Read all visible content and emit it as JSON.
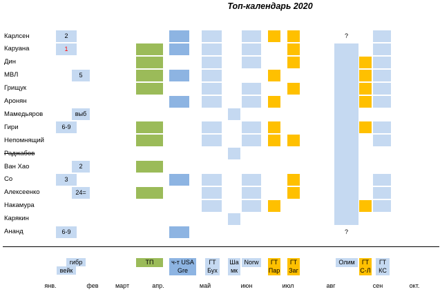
{
  "title": "Топ-календарь 2020",
  "colors": {
    "light_blue": "#c5d9f1",
    "green": "#9bbb59",
    "orange": "#ffc000",
    "mid_blue": "#8db4e2",
    "red_text": "#ff0000"
  },
  "chart_data": {
    "type": "table",
    "title": "Топ-календарь 2020",
    "players": [
      "Карлсен",
      "Каруана",
      "Дин",
      "МВЛ",
      "Грищук",
      "Аронян",
      "Мамедьяров",
      "Гири",
      "Непомнящий",
      "Раджабов",
      "Ван Хао",
      "Со",
      "Алексеенко",
      "Накамура",
      "Карякин",
      "Ананд"
    ],
    "struck_players": [
      "Раджабов"
    ],
    "months": [
      "янв.",
      "фев",
      "март",
      "апр.",
      "май",
      "июн",
      "июл",
      "авг",
      "сен",
      "окт."
    ],
    "events": [
      {
        "id": "gibraltar",
        "label_lines": [
          "гибр",
          "вейк"
        ],
        "color": "light_blue"
      },
      {
        "id": "candidates",
        "label_lines": [
          "ТП"
        ],
        "color": "green"
      },
      {
        "id": "us_champ",
        "label_lines": [
          "ч-т USA",
          "Gre"
        ],
        "color": "mid_blue"
      },
      {
        "id": "gt_buch",
        "label_lines": [
          "ГТ",
          "Бух"
        ],
        "color": "light_blue"
      },
      {
        "id": "shamkir",
        "label_lines": [
          "Ша",
          "мк"
        ],
        "color": "light_blue"
      },
      {
        "id": "norway",
        "label_lines": [
          "Norw"
        ],
        "color": "light_blue"
      },
      {
        "id": "gt_paris",
        "label_lines": [
          "ГТ",
          "Пар"
        ],
        "color": "orange"
      },
      {
        "id": "gt_zagreb",
        "label_lines": [
          "ГТ",
          "Заг"
        ],
        "color": "orange"
      },
      {
        "id": "olympiad",
        "label_lines": [
          "Олим"
        ],
        "color": "light_blue"
      },
      {
        "id": "gt_stl",
        "label_lines": [
          "ГТ",
          "С-Л"
        ],
        "color": "orange"
      },
      {
        "id": "gt_kc",
        "label_lines": [
          "ГТ",
          "КС"
        ],
        "color": "light_blue"
      }
    ],
    "participation": {
      "Карлсен": [
        "us_champ",
        "gt_buch",
        "norway",
        "gt_paris",
        "gt_zagreb",
        "gt_kc"
      ],
      "Каруана": [
        "candidates",
        "us_champ",
        "gt_buch",
        "norway",
        "gt_zagreb",
        "olympiad",
        "gt_kc"
      ],
      "Дин": [
        "candidates",
        "gt_buch",
        "norway",
        "gt_zagreb",
        "olympiad",
        "gt_stl",
        "gt_kc"
      ],
      "МВЛ": [
        "candidates",
        "us_champ",
        "gt_buch",
        "gt_paris",
        "olympiad",
        "gt_stl",
        "gt_kc"
      ],
      "Грищук": [
        "candidates",
        "gt_buch",
        "norway",
        "gt_zagreb",
        "olympiad",
        "gt_stl",
        "gt_kc"
      ],
      "Аронян": [
        "us_champ",
        "gt_buch",
        "norway",
        "gt_paris",
        "olympiad",
        "gt_stl",
        "gt_kc"
      ],
      "Мамедьяров": [
        "shamkir",
        "olympiad"
      ],
      "Гири": [
        "candidates",
        "gt_buch",
        "norway",
        "gt_paris",
        "olympiad",
        "gt_stl",
        "gt_kc"
      ],
      "Непомнящий": [
        "candidates",
        "gt_buch",
        "norway",
        "gt_paris",
        "gt_zagreb",
        "olympiad",
        "gt_kc"
      ],
      "Раджабов": [
        "shamkir",
        "olympiad"
      ],
      "Ван Хао": [
        "candidates",
        "olympiad"
      ],
      "Со": [
        "us_champ",
        "gt_buch",
        "norway",
        "gt_zagreb",
        "olympiad",
        "gt_kc"
      ],
      "Алексеенко": [
        "candidates",
        "gt_buch",
        "norway",
        "gt_zagreb",
        "olympiad",
        "gt_kc"
      ],
      "Накамура": [
        "gt_buch",
        "norway",
        "gt_paris",
        "olympiad",
        "gt_stl",
        "gt_kc"
      ],
      "Карякин": [
        "shamkir",
        "olympiad"
      ],
      "Ананд": [
        "us_champ"
      ]
    },
    "early_entries": [
      {
        "player": "Карлсен",
        "text": "2",
        "event": "gibraltar"
      },
      {
        "player": "Каруана",
        "text": "1",
        "event": "gibraltar",
        "color": "red_text"
      },
      {
        "player": "МВЛ",
        "text": "5",
        "event": "gibraltar_late"
      },
      {
        "player": "Мамедьяров",
        "text": "выб",
        "event": "gibraltar_late"
      },
      {
        "player": "Гири",
        "text": "6-9",
        "event": "gibraltar"
      },
      {
        "player": "Ван Хао",
        "text": "2",
        "event": "gibraltar_late"
      },
      {
        "player": "Со",
        "text": "3",
        "event": "gibraltar"
      },
      {
        "player": "Алексеенко",
        "text": "24=",
        "event": "gibraltar_late"
      },
      {
        "player": "Ананд",
        "text": "6-9",
        "event": "gibraltar"
      }
    ],
    "question_marks": [
      {
        "player": "Карлсен",
        "text": "?"
      },
      {
        "player": "Ананд",
        "text": "?"
      }
    ]
  }
}
